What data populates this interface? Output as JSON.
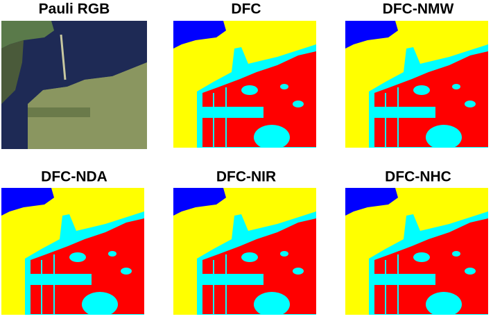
{
  "panels": [
    {
      "title": "Pauli RGB"
    },
    {
      "title": "DFC"
    },
    {
      "title": "DFC-NMW"
    },
    {
      "title": "DFC-NDA"
    },
    {
      "title": "DFC-NIR"
    },
    {
      "title": "DFC-NHC"
    }
  ]
}
